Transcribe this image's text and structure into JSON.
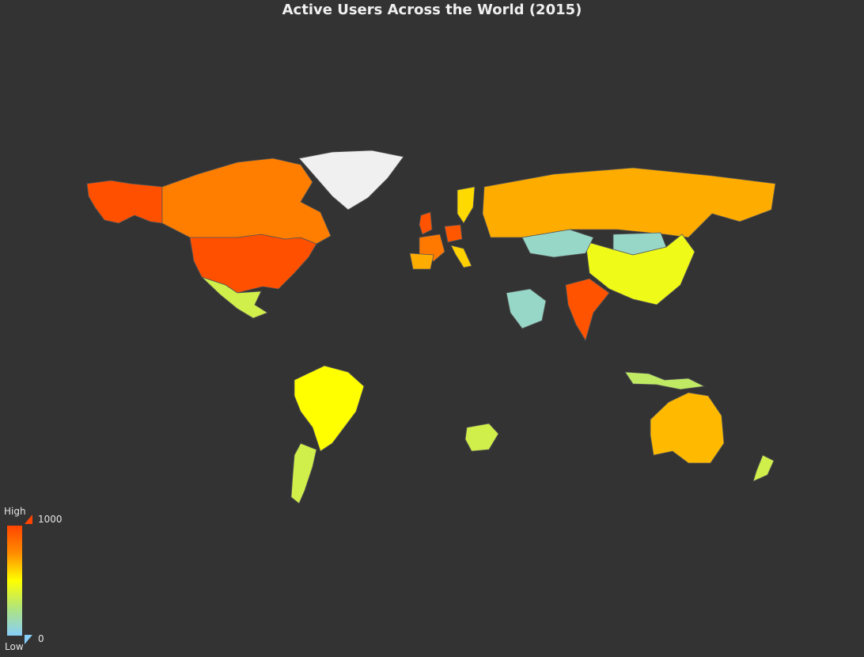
{
  "title": "Active Users Across the World (2015)",
  "legend": {
    "high_label": "High",
    "low_label": "Low",
    "max_value": "1000",
    "min_value": "0",
    "gradient": [
      "#ff4500",
      "#ff8c00",
      "#ffff00",
      "#90ee90",
      "#87cefa"
    ]
  },
  "colors": {
    "background": "#333333",
    "no_data": "#f0f0f0",
    "border": "#555555"
  },
  "chart_data": {
    "type": "choropleth",
    "title": "Active Users Across the World (2015)",
    "scale": {
      "min": 0,
      "max": 1000,
      "low_color": "#87cefa",
      "high_color": "#ff4500"
    },
    "regions": [
      {
        "name": "United States",
        "value": 960
      },
      {
        "name": "Alaska",
        "value": 960
      },
      {
        "name": "Canada",
        "value": 800
      },
      {
        "name": "India",
        "value": 950
      },
      {
        "name": "United Kingdom",
        "value": 950
      },
      {
        "name": "Germany",
        "value": 940
      },
      {
        "name": "France",
        "value": 820
      },
      {
        "name": "Spain",
        "value": 680
      },
      {
        "name": "Italy",
        "value": 600
      },
      {
        "name": "Russia",
        "value": 680
      },
      {
        "name": "Australia",
        "value": 650
      },
      {
        "name": "Brazil",
        "value": 500
      },
      {
        "name": "Sweden",
        "value": 580
      },
      {
        "name": "China",
        "value": 450
      },
      {
        "name": "Mexico",
        "value": 350
      },
      {
        "name": "Argentina",
        "value": 350
      },
      {
        "name": "South Africa",
        "value": 350
      },
      {
        "name": "New Zealand",
        "value": 350
      },
      {
        "name": "Indonesia",
        "value": 300
      },
      {
        "name": "Kazakhstan",
        "value": 100
      },
      {
        "name": "Mongolia",
        "value": 100
      },
      {
        "name": "Saudi Arabia",
        "value": 100
      },
      {
        "name": "Greenland",
        "value": null
      }
    ]
  }
}
